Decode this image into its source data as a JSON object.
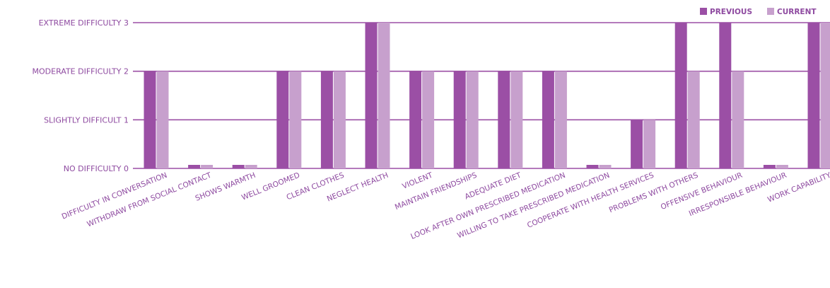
{
  "chart_data": {
    "type": "bar",
    "categories": [
      "DIFFICULTY IN CONVERSATION",
      "WITHDRAW FROM SOCIAL CONTACT",
      "SHOWS WARMTH",
      "WELL GROOMED",
      "CLEAN CLOTHES",
      "NEGLECT HEALTH",
      "VIOLENT",
      "MAINTAIN FRIENDSHIPS",
      "ADEQUATE DIET",
      "LOOK AFTER OWN PRESCRIBED MEDICATION",
      "WILLING TO TAKE PRESCRIBED MEDICATION",
      "COOPERATE WITH HEALTH SERVICES",
      "PROBLEMS WITH OTHERS",
      "OFFENSIVE BEHAVIOUR",
      "IRRESPONSIBLE BEHAVIOUR",
      "WORK CAPABILITY"
    ],
    "series": [
      {
        "name": "PREVIOUS",
        "color": "#9b4fa5",
        "values": [
          2,
          0,
          0,
          2,
          2,
          3,
          2,
          2,
          2,
          2,
          0,
          1,
          3,
          3,
          0,
          3
        ]
      },
      {
        "name": "CURRENT",
        "color": "#c7a0cd",
        "values": [
          2,
          0,
          0,
          2,
          2,
          3,
          2,
          2,
          2,
          2,
          0,
          1,
          2,
          2,
          0,
          3
        ]
      }
    ],
    "yticks": [
      {
        "value": 0,
        "label": "NO DIFFICULTY  0"
      },
      {
        "value": 1,
        "label": "SLIGHTLY DIFFICULT  1"
      },
      {
        "value": 2,
        "label": "MODERATE DIFFICULTY  2"
      },
      {
        "value": 3,
        "label": "EXTREME DIFFICULTY  3"
      }
    ],
    "ylim": [
      0,
      3
    ],
    "grid": true,
    "gridColor": "#9b4fa5",
    "labelColor": "#8e4aa0",
    "legend_position": "top-right"
  }
}
